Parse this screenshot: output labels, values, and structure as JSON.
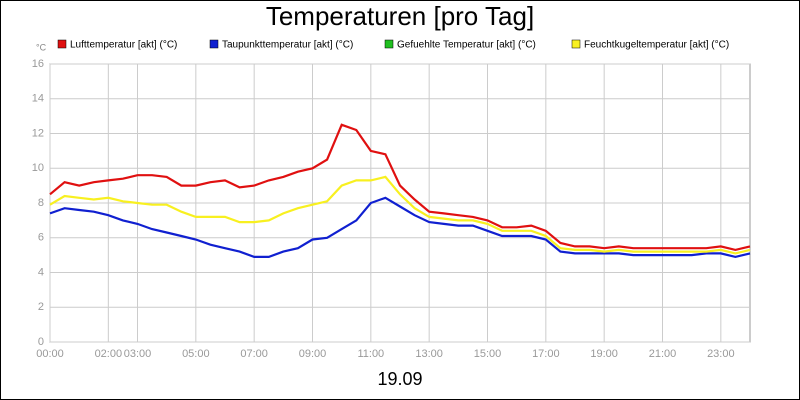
{
  "chart_data": {
    "type": "line",
    "title": "Temperaturen [pro Tag]",
    "ylabel": "°C",
    "xlabel": "19.09",
    "x": [
      0,
      0.5,
      1,
      1.5,
      2,
      2.5,
      3,
      3.5,
      4,
      4.5,
      5,
      5.5,
      6,
      6.5,
      7,
      7.5,
      8,
      8.5,
      9,
      9.5,
      10,
      10.5,
      11,
      11.5,
      12,
      12.5,
      13,
      13.5,
      14,
      14.5,
      15,
      15.5,
      16,
      16.5,
      17,
      17.5,
      18,
      18.5,
      19,
      19.5,
      20,
      20.5,
      21,
      21.5,
      22,
      22.5,
      23,
      23.5,
      24
    ],
    "xlim": [
      0,
      24
    ],
    "xticks": [
      {
        "value": 0,
        "label": "00:00"
      },
      {
        "value": 2,
        "label": "02:00"
      },
      {
        "value": 3,
        "label": "03:00"
      },
      {
        "value": 5,
        "label": "05:00"
      },
      {
        "value": 7,
        "label": "07:00"
      },
      {
        "value": 9,
        "label": "09:00"
      },
      {
        "value": 11,
        "label": "11:00"
      },
      {
        "value": 13,
        "label": "13:00"
      },
      {
        "value": 15,
        "label": "15:00"
      },
      {
        "value": 17,
        "label": "17:00"
      },
      {
        "value": 19,
        "label": "19:00"
      },
      {
        "value": 21,
        "label": "21:00"
      },
      {
        "value": 23,
        "label": "23:00"
      }
    ],
    "ylim": [
      0,
      16
    ],
    "yticks": [
      0,
      2,
      4,
      6,
      8,
      10,
      12,
      14,
      16
    ],
    "grid": true,
    "series": [
      {
        "name": "Lufttemperatur [akt] (°C)",
        "color": "#e01010",
        "values": [
          8.5,
          9.2,
          9.0,
          9.2,
          9.3,
          9.4,
          9.6,
          9.6,
          9.5,
          9.0,
          9.0,
          9.2,
          9.3,
          8.9,
          9.0,
          9.3,
          9.5,
          9.8,
          10.0,
          10.5,
          12.5,
          12.2,
          11.0,
          10.8,
          9.0,
          8.2,
          7.5,
          7.4,
          7.3,
          7.2,
          7.0,
          6.6,
          6.6,
          6.7,
          6.4,
          5.7,
          5.5,
          5.5,
          5.4,
          5.5,
          5.4,
          5.4,
          5.4,
          5.4,
          5.4,
          5.4,
          5.5,
          5.3,
          5.5
        ]
      },
      {
        "name": "Taupunkttemperatur [akt] (°C)",
        "color": "#1020d0",
        "values": [
          7.4,
          7.7,
          7.6,
          7.5,
          7.3,
          7.0,
          6.8,
          6.5,
          6.3,
          6.1,
          5.9,
          5.6,
          5.4,
          5.2,
          4.9,
          4.9,
          5.2,
          5.4,
          5.9,
          6.0,
          6.5,
          7.0,
          8.0,
          8.3,
          7.8,
          7.3,
          6.9,
          6.8,
          6.7,
          6.7,
          6.4,
          6.1,
          6.1,
          6.1,
          5.9,
          5.2,
          5.1,
          5.1,
          5.1,
          5.1,
          5.0,
          5.0,
          5.0,
          5.0,
          5.0,
          5.1,
          5.1,
          4.9,
          5.1
        ]
      },
      {
        "name": "Gefuehlte Temperatur [akt] (°C)",
        "color": "#20c020",
        "values": [
          null,
          null,
          null,
          null,
          null,
          null,
          null,
          null,
          null,
          null,
          null,
          null,
          null,
          null,
          null,
          null,
          null,
          null,
          null,
          null,
          null,
          null,
          null,
          null,
          null,
          null,
          null,
          null,
          null,
          null,
          null,
          null,
          null,
          null,
          null,
          null,
          null,
          null,
          null,
          null,
          null,
          null,
          null,
          null,
          null,
          null,
          null,
          null,
          null
        ]
      },
      {
        "name": "Feuchtkugeltemperatur [akt] (°C)",
        "color": "#f8f020",
        "values": [
          7.9,
          8.4,
          8.3,
          8.2,
          8.3,
          8.1,
          8.0,
          7.9,
          7.9,
          7.5,
          7.2,
          7.2,
          7.2,
          6.9,
          6.9,
          7.0,
          7.4,
          7.7,
          7.9,
          8.1,
          9.0,
          9.3,
          9.3,
          9.5,
          8.5,
          7.7,
          7.2,
          7.1,
          7.0,
          7.0,
          6.8,
          6.4,
          6.4,
          6.4,
          6.1,
          5.4,
          5.3,
          5.3,
          5.2,
          5.3,
          5.2,
          5.2,
          5.2,
          5.2,
          5.2,
          5.2,
          5.3,
          5.1,
          5.3
        ]
      }
    ]
  }
}
